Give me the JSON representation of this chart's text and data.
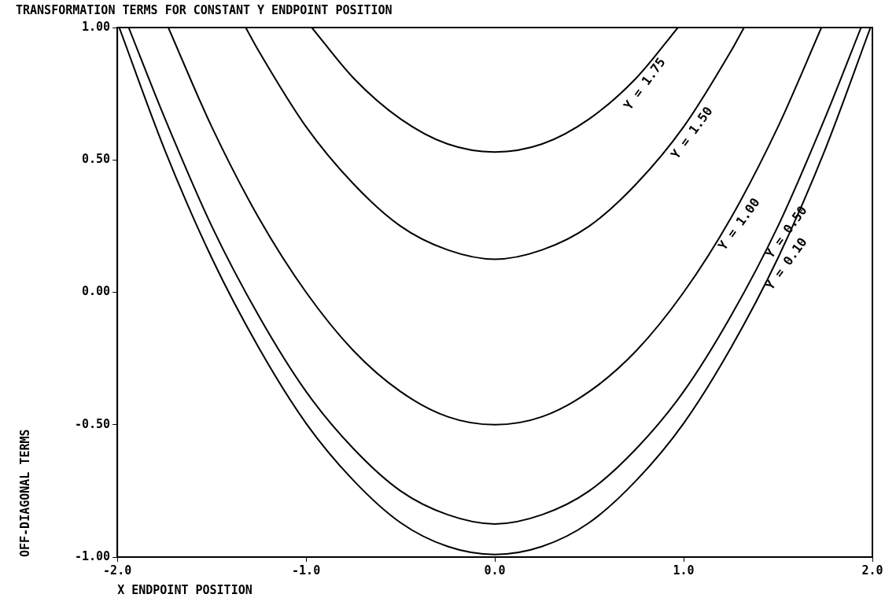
{
  "chart_data": {
    "type": "line",
    "title": "TRANSFORMATION TERMS FOR CONSTANT Y ENDPOINT POSITION",
    "xlabel": "X ENDPOINT POSITION",
    "ylabel": "OFF-DIAGONAL TERMS",
    "xlim": [
      -2.0,
      2.0
    ],
    "ylim": [
      -1.0,
      1.0
    ],
    "xticks": [
      {
        "value": -2,
        "label": "-2.0"
      },
      {
        "value": -1,
        "label": "-1.0"
      },
      {
        "value": 0,
        "label": "0.0"
      },
      {
        "value": 1,
        "label": "1.0"
      },
      {
        "value": 2,
        "label": "2.0"
      }
    ],
    "yticks": [
      {
        "value": -1,
        "label": "-1.00"
      },
      {
        "value": -0.5,
        "label": "-0.50"
      },
      {
        "value": 0,
        "label": "0.00"
      },
      {
        "value": 0.5,
        "label": "0.50"
      },
      {
        "value": 1,
        "label": "1.00"
      }
    ],
    "grid": false,
    "legend": false,
    "marker": "none",
    "line_style": "solid",
    "series": [
      {
        "color": "#000000",
        "x": [
          -0.97,
          -0.75,
          -0.5,
          -0.25,
          0,
          0.25,
          0.5,
          0.75,
          0.97
        ],
        "values": [
          1.0,
          0.81,
          0.655,
          0.56,
          0.53,
          0.56,
          0.655,
          0.81,
          1.0
        ]
      },
      {
        "color": "#000000",
        "x": [
          -1.32,
          -1.25,
          -1.0,
          -0.75,
          -0.5,
          -0.25,
          0,
          0.25,
          0.5,
          0.75,
          1.0,
          1.25,
          1.32
        ],
        "values": [
          1.0,
          0.91,
          0.625,
          0.41,
          0.25,
          0.16,
          0.125,
          0.16,
          0.25,
          0.41,
          0.625,
          0.91,
          1.0
        ]
      },
      {
        "color": "#000000",
        "x": [
          -1.73,
          -1.5,
          -1.25,
          -1.0,
          -0.75,
          -0.5,
          -0.25,
          0,
          0.25,
          0.5,
          0.75,
          1.0,
          1.25,
          1.5,
          1.73
        ],
        "values": [
          1.0,
          0.625,
          0.28,
          0,
          -0.22,
          -0.375,
          -0.47,
          -0.5,
          -0.47,
          -0.375,
          -0.22,
          0,
          0.28,
          0.625,
          1.0
        ]
      },
      {
        "color": "#000000",
        "x": [
          -1.94,
          -1.75,
          -1.5,
          -1.25,
          -1.0,
          -0.75,
          -0.5,
          -0.25,
          0,
          0.25,
          0.5,
          0.75,
          1.0,
          1.25,
          1.5,
          1.75,
          1.94
        ],
        "values": [
          1.0,
          0.66,
          0.25,
          -0.09,
          -0.375,
          -0.59,
          -0.75,
          -0.84,
          -0.875,
          -0.84,
          -0.75,
          -0.59,
          -0.375,
          -0.09,
          0.25,
          0.66,
          1.0
        ]
      },
      {
        "color": "#000000",
        "x": [
          -1.99,
          -1.75,
          -1.5,
          -1.25,
          -1.0,
          -0.75,
          -0.5,
          -0.25,
          0,
          0.25,
          0.5,
          0.75,
          1.0,
          1.25,
          1.5,
          1.75,
          1.99
        ],
        "values": [
          1.0,
          0.54,
          0.13,
          -0.21,
          -0.495,
          -0.71,
          -0.87,
          -0.96,
          -0.99,
          -0.96,
          -0.87,
          -0.71,
          -0.495,
          -0.21,
          0.13,
          0.54,
          1.0
        ]
      }
    ],
    "annotations": [
      {
        "text": "Y = 1.75",
        "x": 0.75,
        "y": 0.81
      },
      {
        "text": "Y = 1.50",
        "x": 1.0,
        "y": 0.625
      },
      {
        "text": "Y = 1.00",
        "x": 1.25,
        "y": 0.28
      },
      {
        "text": "Y = 0.50",
        "x": 1.5,
        "y": 0.25
      },
      {
        "text": "Y = 0.10",
        "x": 1.5,
        "y": 0.13
      }
    ]
  }
}
